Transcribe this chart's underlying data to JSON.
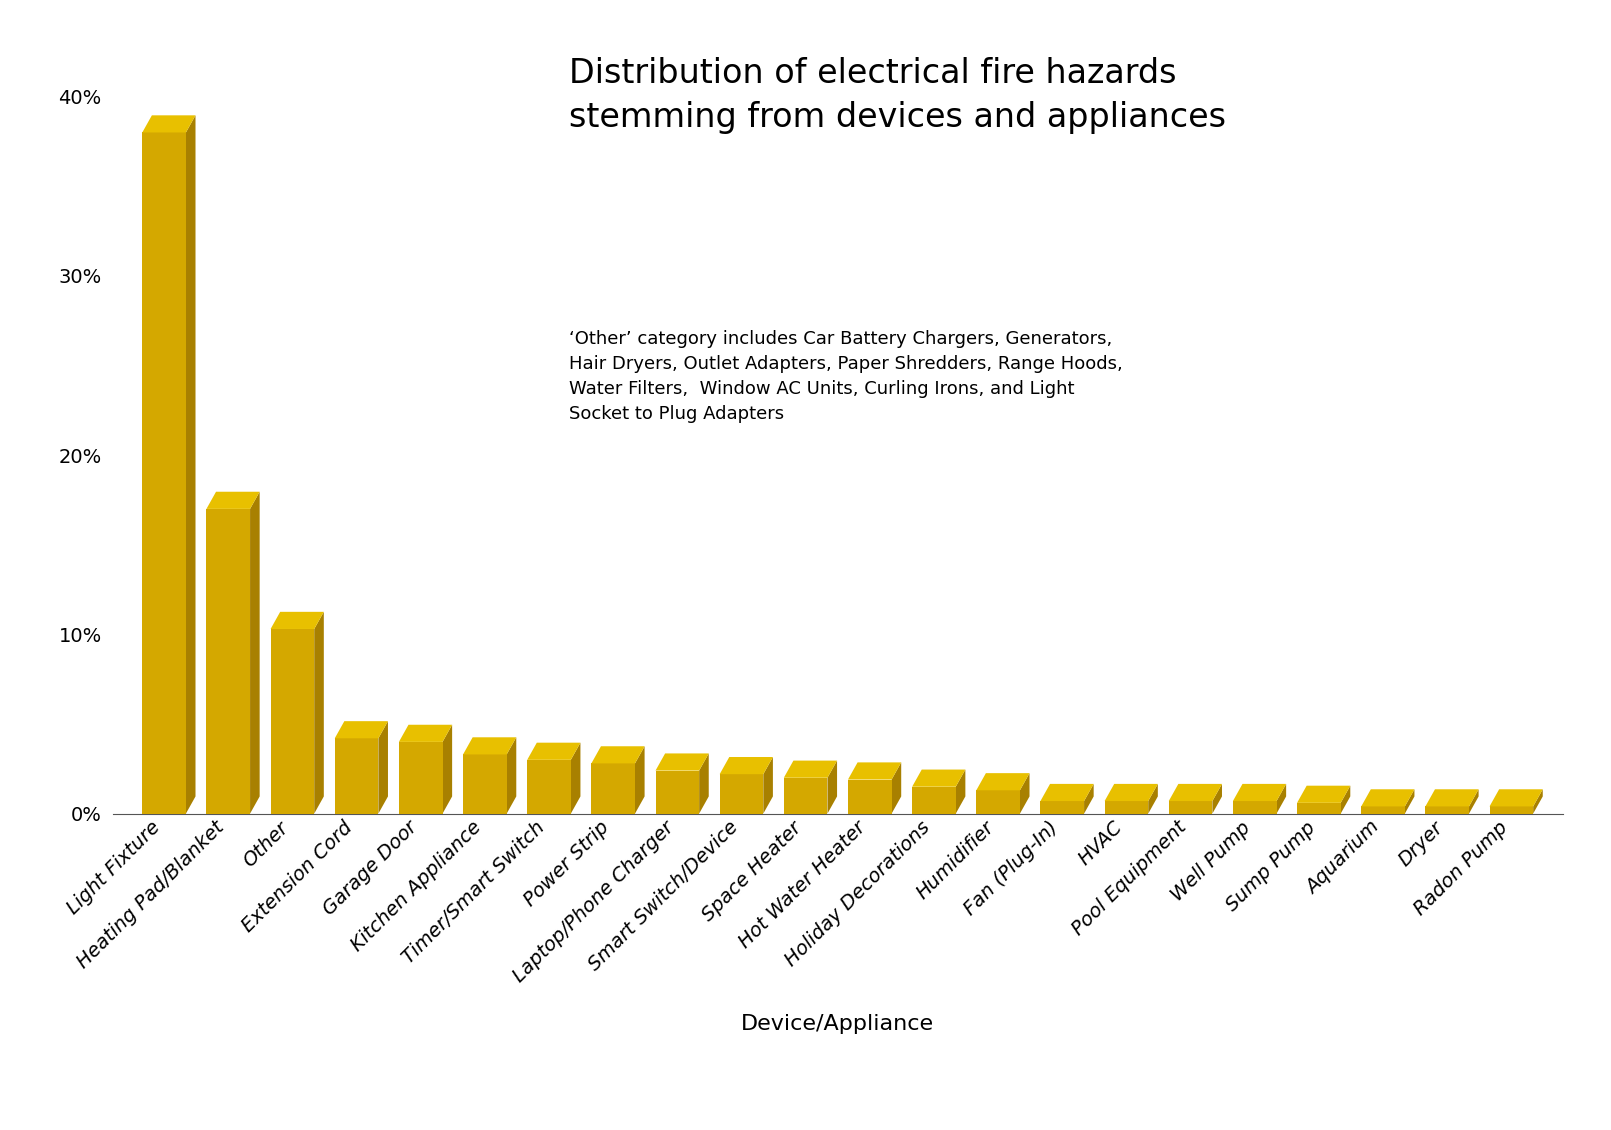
{
  "categories": [
    "Light Fixture",
    "Heating Pad/Blanket",
    "Other",
    "Extension Cord",
    "Garage Door",
    "Kitchen Appliance",
    "Timer/Smart Switch",
    "Power Strip",
    "Laptop/Phone Charger",
    "Smart Switch/Device",
    "Space Heater",
    "Hot Water Heater",
    "Holiday Decorations",
    "Humidifier",
    "Fan (Plug-In)",
    "HVAC",
    "Pool Equipment",
    "Well Pump",
    "Sump Pump",
    "Aquarium",
    "Dryer",
    "Radon Pump"
  ],
  "values": [
    0.38,
    0.17,
    0.103,
    0.042,
    0.04,
    0.033,
    0.03,
    0.028,
    0.024,
    0.022,
    0.02,
    0.019,
    0.015,
    0.013,
    0.007,
    0.007,
    0.007,
    0.007,
    0.006,
    0.004,
    0.004,
    0.004
  ],
  "bar_color_face": "#D4A800",
  "bar_color_top": "#E8C000",
  "bar_color_side": "#A88000",
  "background_color": "#FFFFFF",
  "title_line1": "Distribution of electrical fire hazards",
  "title_line2": "stemming from devices and appliances",
  "annotation": "‘Other’ category includes Car Battery Chargers, Generators,\nHair Dryers, Outlet Adapters, Paper Shredders, Range Hoods,\nWater Filters,  Window AC Units, Curling Irons, and Light\nSocket to Plug Adapters",
  "xlabel": "Device/Appliance",
  "yticks": [
    0.0,
    0.1,
    0.2,
    0.3,
    0.4
  ],
  "ytick_labels": [
    "0%",
    "10%",
    "20%",
    "30%",
    "40%"
  ],
  "ylim": [
    0,
    0.435
  ],
  "title_fontsize": 24,
  "annotation_fontsize": 13,
  "xlabel_fontsize": 16,
  "tick_fontsize": 14
}
